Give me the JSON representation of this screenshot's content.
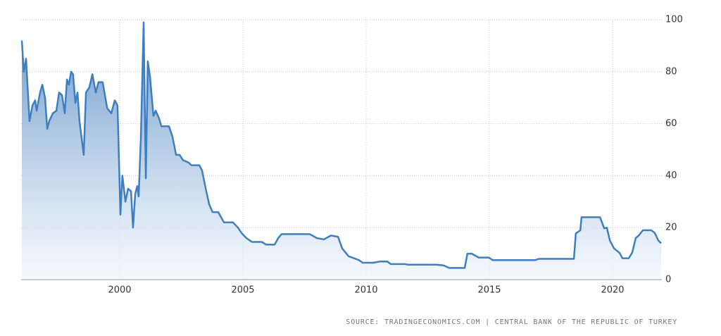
{
  "chart_data": {
    "type": "area",
    "x": [
      1996.03,
      1996.11,
      1996.2,
      1996.34,
      1996.46,
      1996.57,
      1996.63,
      1996.77,
      1996.86,
      1996.97,
      1997.06,
      1997.14,
      1997.29,
      1997.43,
      1997.54,
      1997.66,
      1997.77,
      1997.86,
      1997.94,
      1998.03,
      1998.11,
      1998.2,
      1998.29,
      1998.37,
      1998.54,
      1998.63,
      1998.77,
      1998.89,
      1999.03,
      1999.14,
      1999.31,
      1999.49,
      1999.66,
      1999.8,
      1999.91,
      2000.03,
      2000.11,
      2000.23,
      2000.34,
      2000.46,
      2000.54,
      2000.63,
      2000.71,
      2000.77,
      2000.86,
      2000.97,
      2001.06,
      2001.14,
      2001.23,
      2001.37,
      2001.46,
      2001.6,
      2001.69,
      2002,
      2002.14,
      2002.29,
      2002.43,
      2002.57,
      2002.8,
      2002.91,
      2003.23,
      2003.34,
      2003.49,
      2003.63,
      2003.77,
      2004,
      2004.23,
      2004.6,
      2004.8,
      2004.94,
      2005.14,
      2005.37,
      2005.77,
      2005.94,
      2006.29,
      2006.43,
      2006.57,
      2007.71,
      2008,
      2008.29,
      2008.57,
      2008.86,
      2009.03,
      2009.29,
      2009.71,
      2009.86,
      2010.29,
      2010.57,
      2010.86,
      2011,
      2011.57,
      2011.71,
      2012.86,
      2013.14,
      2013.37,
      2014,
      2014.11,
      2014.29,
      2014.57,
      2014.97,
      2015.14,
      2016.86,
      2017,
      2018.43,
      2018.51,
      2018.69,
      2018.74,
      2019.49,
      2019.66,
      2019.77,
      2019.89,
      2020.06,
      2020.29,
      2020.4,
      2020.66,
      2020.8,
      2020.94,
      2021.06,
      2021.23,
      2021.57,
      2021.71,
      2021.86,
      2021.97
    ],
    "values": [
      92,
      80,
      85,
      61,
      67,
      69,
      65,
      72,
      75,
      70,
      58,
      61,
      64,
      65,
      72,
      71,
      64,
      77,
      75,
      80,
      79,
      68,
      72,
      61,
      48,
      72,
      74,
      79,
      72,
      76,
      76,
      66,
      64,
      69,
      67,
      25,
      40,
      30,
      35,
      34,
      20,
      33,
      36,
      32,
      55,
      99,
      39,
      84,
      78,
      63,
      65,
      62,
      59,
      59,
      55,
      48,
      48,
      46,
      45,
      44,
      44,
      42,
      35,
      29,
      26,
      26,
      22,
      22,
      20,
      18,
      16,
      14.5,
      14.5,
      13.5,
      13.5,
      16,
      17.5,
      17.5,
      16,
      15.5,
      17,
      16.5,
      12,
      9,
      7.5,
      6.5,
      6.5,
      7,
      7,
      6,
      6,
      5.75,
      5.75,
      5.5,
      4.5,
      4.5,
      10,
      10,
      8.5,
      8.5,
      7.5,
      7.5,
      8,
      8,
      17.75,
      19,
      24,
      24,
      19.75,
      20,
      15,
      12,
      10.25,
      8.25,
      8.25,
      10.5,
      16,
      17,
      19,
      19,
      18,
      15,
      14
    ],
    "color": "#3f7fbf",
    "xlim": [
      1996,
      2022
    ],
    "xticks": [
      2000,
      2005,
      2010,
      2015,
      2020
    ],
    "ylim": [
      0,
      100
    ],
    "yticks": [
      0,
      20,
      40,
      60,
      80,
      100
    ],
    "grid": true,
    "source": "SOURCE: TRADINGECONOMICS.COM | CENTRAL BANK OF THE REPUBLIC OF TURKEY"
  }
}
